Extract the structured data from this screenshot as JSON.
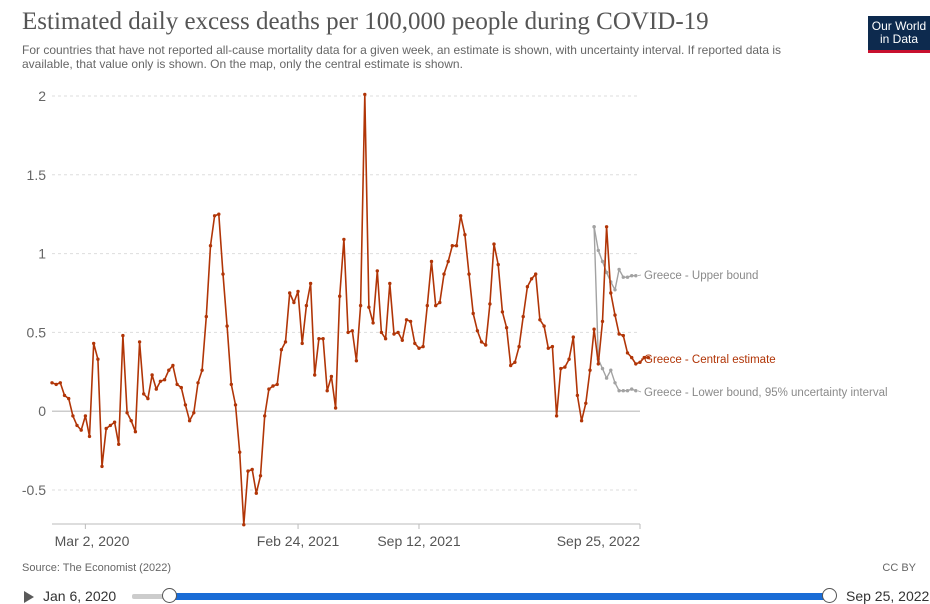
{
  "header": {
    "title": "Estimated daily excess deaths per 100,000 people during COVID-19",
    "subtitle": "For countries that have not reported all-cause mortality data for a given week, an estimate is shown, with uncertainty interval. If reported data is available, that value only is shown. On the map, only the central estimate is shown.",
    "logo_line1": "Our World",
    "logo_line2": "in Data"
  },
  "footer": {
    "source": "Source: The Economist (2022)",
    "license": "CC BY"
  },
  "timeline": {
    "start_label": "Jan 6, 2020",
    "end_label": "Sep 25, 2022"
  },
  "colors": {
    "central": "#b13507",
    "bounds": "#a2a2a2",
    "axis": "#bbbbbb",
    "grid": "#dddddd",
    "tick_text": "#666666"
  },
  "chart_data": {
    "type": "line",
    "title": "Estimated daily excess deaths per 100,000 people during COVID-19",
    "xlabel": "",
    "ylabel": "",
    "ylim": [
      -0.75,
      2.0
    ],
    "y_ticks": [
      2,
      1.5,
      1,
      0.5,
      0,
      -0.5
    ],
    "y_tick_labels": [
      "2",
      "1.5",
      "1",
      "0.5",
      "0",
      "-0.5"
    ],
    "x_ticks": [
      {
        "label": "Mar 2, 2020",
        "week": 8
      },
      {
        "label": "Feb 24, 2021",
        "week": 59
      },
      {
        "label": "Sep 12, 2021",
        "week": 88
      },
      {
        "label": "Sep 25, 2022",
        "week": 141
      }
    ],
    "x_start": "Jan 6, 2020",
    "x_end": "Sep 25, 2022",
    "n_weeks": 142,
    "series": [
      {
        "name": "Greece - Upper bound",
        "label": "Greece - Upper bound",
        "start_week": 130,
        "values": [
          1.17,
          1.02,
          0.95,
          0.88,
          0.82,
          0.77,
          0.9,
          0.85,
          0.85,
          0.86,
          0.86
        ]
      },
      {
        "name": "Greece - Central estimate",
        "label": "Greece - Central estimate",
        "start_week": 0,
        "values": [
          0.18,
          0.17,
          0.18,
          0.1,
          0.08,
          -0.03,
          -0.09,
          -0.12,
          -0.03,
          -0.16,
          0.43,
          0.33,
          -0.35,
          -0.11,
          -0.09,
          -0.07,
          -0.21,
          0.48,
          -0.01,
          -0.06,
          -0.13,
          0.44,
          0.11,
          0.08,
          0.23,
          0.14,
          0.19,
          0.2,
          0.26,
          0.29,
          0.17,
          0.15,
          0.04,
          -0.06,
          -0.01,
          0.18,
          0.26,
          0.6,
          1.05,
          1.24,
          1.25,
          0.87,
          0.54,
          0.17,
          0.04,
          -0.26,
          -0.72,
          -0.38,
          -0.37,
          -0.52,
          -0.41,
          -0.03,
          0.14,
          0.16,
          0.17,
          0.39,
          0.44,
          0.75,
          0.69,
          0.76,
          0.43,
          0.67,
          0.81,
          0.23,
          0.46,
          0.46,
          0.13,
          0.22,
          0.02,
          0.73,
          1.09,
          0.5,
          0.51,
          0.32,
          0.67,
          2.01,
          0.66,
          0.56,
          0.89,
          0.5,
          0.46,
          0.81,
          0.49,
          0.5,
          0.45,
          0.58,
          0.57,
          0.43,
          0.4,
          0.41,
          0.67,
          0.95,
          0.67,
          0.69,
          0.87,
          0.95,
          1.05,
          1.05,
          1.24,
          1.12,
          0.87,
          0.62,
          0.51,
          0.44,
          0.42,
          0.68,
          1.06,
          0.93,
          0.63,
          0.53,
          0.29,
          0.31,
          0.41,
          0.6,
          0.79,
          0.84,
          0.87,
          0.58,
          0.54,
          0.4,
          0.41,
          -0.03,
          0.27,
          0.28,
          0.33,
          0.47,
          0.1,
          -0.06,
          0.05,
          0.26,
          0.52,
          0.3,
          0.57,
          1.17,
          0.75,
          0.61,
          0.49,
          0.48,
          0.37,
          0.34,
          0.3,
          0.31,
          0.34,
          0.34
        ]
      },
      {
        "name": "Greece - Lower bound, 95% uncertainty interval",
        "label": "Greece - Lower bound, 95% uncertainty interval",
        "start_week": 130,
        "values": [
          1.17,
          0.33,
          0.27,
          0.21,
          0.26,
          0.18,
          0.13,
          0.13,
          0.13,
          0.14,
          0.13
        ]
      }
    ]
  }
}
